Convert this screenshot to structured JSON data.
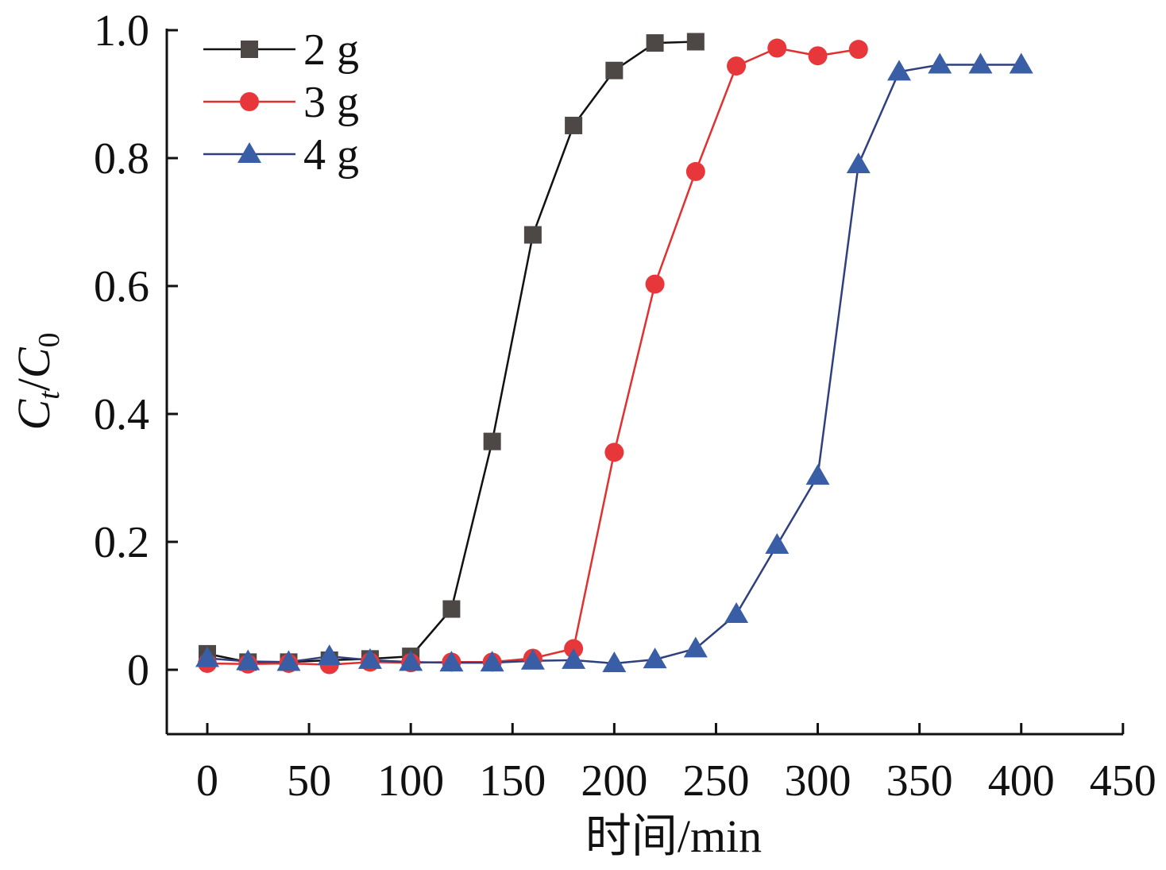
{
  "chart_data": {
    "type": "line",
    "xlabel": "时间/min",
    "ylabel": {
      "c1": "C",
      "s1": "t",
      "slash": "/",
      "c2": "C",
      "s2": "0"
    },
    "xlim": [
      -20,
      450
    ],
    "ylim": [
      -0.1,
      1.0
    ],
    "xticks": [
      0,
      50,
      100,
      150,
      200,
      250,
      300,
      350,
      400,
      450
    ],
    "yticks": [
      0,
      0.2,
      0.4,
      0.6,
      0.8,
      1.0
    ],
    "ytick_labels": [
      "0",
      "0.2",
      "0.4",
      "0.6",
      "0.8",
      "1.0"
    ],
    "grid": false,
    "legend_position": "top-left",
    "series": [
      {
        "name": "2 g",
        "color": "#111111",
        "marker_color": "#4d4845",
        "marker": "square",
        "x": [
          0,
          20,
          40,
          60,
          80,
          100,
          120,
          140,
          160,
          180,
          200,
          220,
          240
        ],
        "y": [
          0.025,
          0.012,
          0.012,
          0.015,
          0.017,
          0.021,
          0.095,
          0.357,
          0.68,
          0.851,
          0.937,
          0.98,
          0.982
        ]
      },
      {
        "name": "3 g",
        "color": "#e03030",
        "marker_color": "#e8373b",
        "marker": "circle",
        "x": [
          0,
          20,
          40,
          60,
          80,
          100,
          120,
          140,
          160,
          180,
          200,
          220,
          240,
          260,
          280,
          300,
          320
        ],
        "y": [
          0.01,
          0.009,
          0.01,
          0.008,
          0.012,
          0.011,
          0.012,
          0.012,
          0.018,
          0.033,
          0.34,
          0.603,
          0.779,
          0.944,
          0.972,
          0.96,
          0.97
        ]
      },
      {
        "name": "4 g",
        "color": "#2f3f7f",
        "marker_color": "#3a5ea5",
        "marker": "triangle",
        "x": [
          0,
          20,
          40,
          60,
          80,
          100,
          120,
          140,
          160,
          180,
          200,
          220,
          240,
          260,
          280,
          300,
          320,
          340,
          360,
          380,
          400
        ],
        "y": [
          0.018,
          0.013,
          0.012,
          0.021,
          0.015,
          0.012,
          0.011,
          0.011,
          0.014,
          0.015,
          0.01,
          0.016,
          0.033,
          0.087,
          0.195,
          0.303,
          0.79,
          0.935,
          0.946,
          0.946,
          0.946
        ]
      }
    ]
  }
}
